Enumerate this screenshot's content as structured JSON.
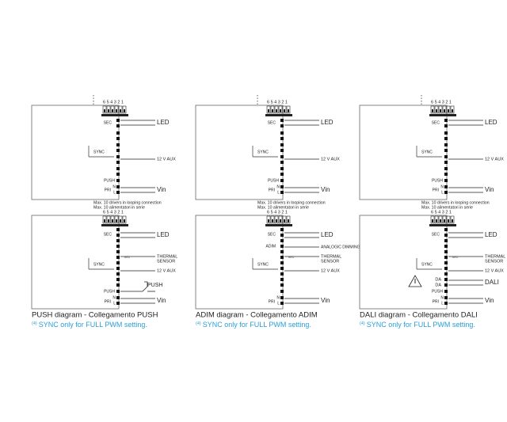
{
  "diagrams": [
    {
      "top": {
        "pins": "6 5 4 3 2 1",
        "sec": "SEC",
        "led": "LED",
        "sync": "SYNC",
        "aux": "12 V AUX",
        "push": "PUSH",
        "pri": "PRI",
        "n": "N",
        "l": "L",
        "vin": "Vin"
      },
      "loop_note": [
        "Max. 10 drivers in looping connection",
        "Max. 10 alimentatori in serie"
      ],
      "bottom": {
        "pins": "6 5 4 3 2 1",
        "sec": "SEC",
        "led": "LED",
        "ntc": "NTC",
        "thermal": [
          "THERMAL",
          "SENSOR"
        ],
        "sync": "SYNC",
        "aux": "12 V AUX",
        "switch": "PUSH",
        "push": "PUSH",
        "pri": "PRI",
        "n": "N",
        "l": "L",
        "vin": "Vin"
      },
      "caption": "PUSH diagram - Collegamento PUSH",
      "note_ref": "(4)",
      "note": "SYNC only for FULL PWM setting."
    },
    {
      "top": {
        "pins": "6 5 4 3 2 1",
        "sec": "SEC",
        "led": "LED",
        "sync": "SYNC",
        "aux": "12 V AUX",
        "push": "PUSH",
        "pri": "PRI",
        "n": "N",
        "l": "L",
        "vin": "Vin"
      },
      "loop_note": [
        "Max. 10 drivers in looping connection",
        "Max. 10 alimentatori in serie"
      ],
      "bottom": {
        "pins": "6 5 4 3 2 1",
        "sec": "SEC",
        "led": "LED",
        "adim": "ADIM",
        "dimming": "ANALOGIC DIMMING",
        "ntc": "NTC",
        "thermal": [
          "THERMAL",
          "SENSOR"
        ],
        "sync": "SYNC",
        "aux": "12 V AUX",
        "pri": "PRI",
        "n": "N",
        "l": "L",
        "vin": "Vin"
      },
      "caption": "ADIM diagram - Collegamento ADIM",
      "note_ref": "(4)",
      "note": "SYNC only for FULL PWM setting."
    },
    {
      "top": {
        "pins": "6 5 4 3 2 1",
        "sec": "SEC",
        "led": "LED",
        "sync": "SYNC",
        "aux": "12 V AUX",
        "push": "PUSH",
        "pri": "PRI",
        "n": "N",
        "l": "L",
        "vin": "Vin"
      },
      "loop_note": [
        "Max. 10 drivers in looping connection",
        "Max. 10 alimentatori in serie"
      ],
      "bottom": {
        "pins": "6 5 4 3 2 1",
        "sec": "SEC",
        "led": "LED",
        "ntc": "NTC",
        "thermal": [
          "THERMAL",
          "SENSOR"
        ],
        "sync": "SYNC",
        "aux": "12 V AUX",
        "da1": "DA",
        "da2": "DA",
        "dali": "DALI",
        "push": "PUSH",
        "pri": "PRI",
        "n": "N",
        "l": "L",
        "vin": "Vin"
      },
      "caption": "DALI diagram - Collegamento DALI",
      "note_ref": "(4)",
      "note": "SYNC only for FULL PWM setting."
    }
  ]
}
